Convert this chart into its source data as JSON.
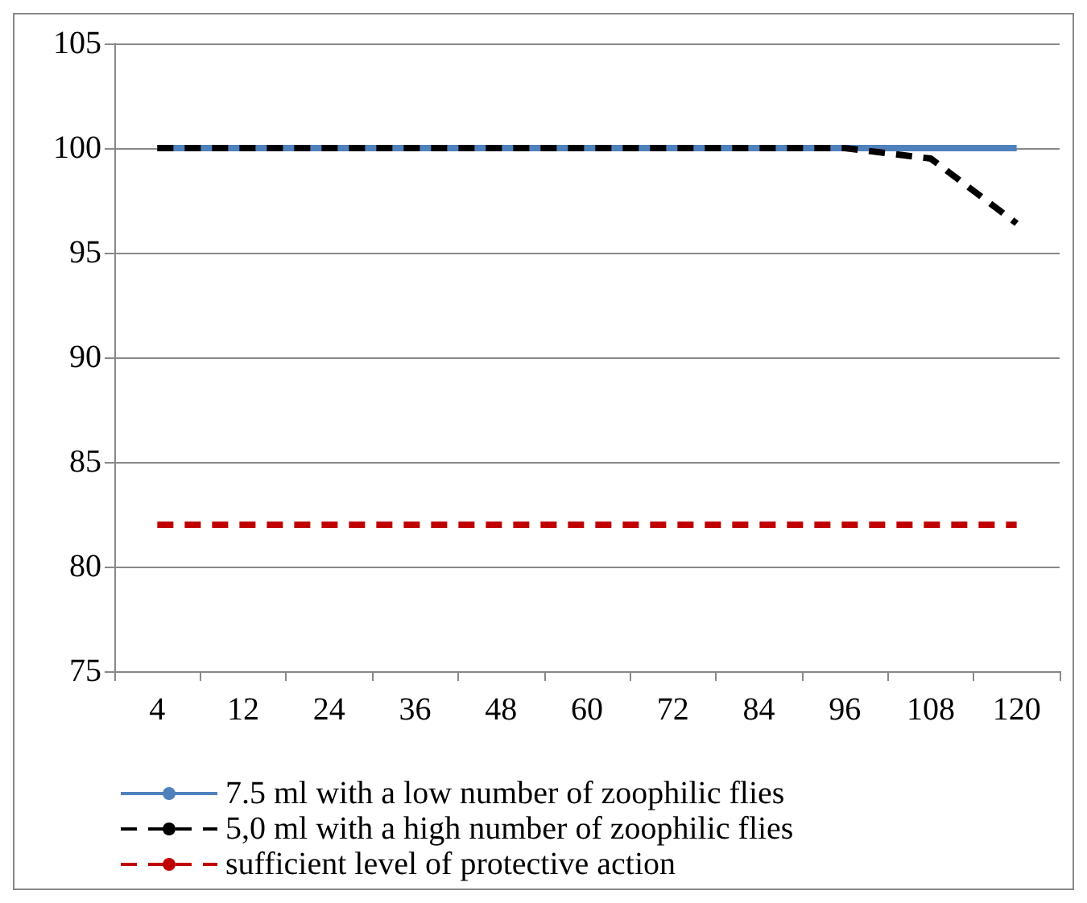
{
  "chart_data": {
    "type": "line",
    "categories": [
      "4",
      "12",
      "24",
      "36",
      "48",
      "60",
      "72",
      "84",
      "96",
      "108",
      "120"
    ],
    "series": [
      {
        "name": "7.5 ml with a low number of zoophilic flies",
        "color": "#4f81bd",
        "line_style": "solid",
        "values": [
          100,
          100,
          100,
          100,
          100,
          100,
          100,
          100,
          100,
          100,
          100
        ]
      },
      {
        "name": "5,0 ml with a high number of zoophilic flies",
        "color": "#000000",
        "line_style": "dashed",
        "values": [
          100,
          100,
          100,
          100,
          100,
          100,
          100,
          100,
          100,
          99.5,
          96.4
        ]
      },
      {
        "name": "sufficient level of protective action",
        "color": "#c00000",
        "line_style": "dashed",
        "values": [
          82,
          82,
          82,
          82,
          82,
          82,
          82,
          82,
          82,
          82,
          82
        ]
      }
    ],
    "ylim": [
      75,
      105
    ],
    "yticks": [
      75,
      80,
      85,
      90,
      95,
      100,
      105
    ],
    "grid": "y",
    "legend": "bottom",
    "marker": "none"
  }
}
